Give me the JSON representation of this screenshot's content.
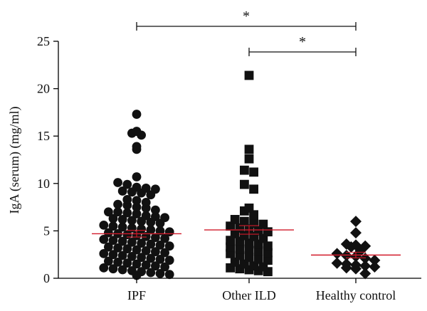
{
  "chart_data": {
    "type": "scatter",
    "title": "",
    "xlabel": "",
    "ylabel": "IgA (serum) (mg/ml)",
    "ylim": [
      0,
      25
    ],
    "yticks": [
      0,
      5,
      10,
      15,
      20,
      25
    ],
    "categories": [
      "IPF",
      "Other ILD",
      "Healthy control"
    ],
    "colors": {
      "points": "#111111",
      "mean": "#d11a2a"
    },
    "series": [
      {
        "category": "IPF",
        "marker": "circle",
        "mean": 4.7,
        "sem": 0.35,
        "values": [
          17.3,
          15.5,
          15.3,
          15.1,
          13.9,
          13.6,
          10.7,
          10.1,
          9.9,
          9.6,
          9.5,
          9.4,
          9.2,
          9.1,
          9.0,
          8.8,
          8.3,
          8.2,
          8.0,
          7.8,
          7.7,
          7.5,
          7.4,
          7.2,
          7.0,
          7.0,
          6.9,
          6.8,
          6.6,
          6.5,
          6.4,
          6.3,
          6.2,
          6.1,
          6.0,
          5.9,
          5.8,
          5.6,
          5.5,
          5.4,
          5.3,
          5.2,
          5.1,
          5.0,
          4.9,
          4.8,
          4.7,
          4.6,
          4.5,
          4.4,
          4.3,
          4.2,
          4.1,
          4.0,
          3.9,
          3.8,
          3.7,
          3.6,
          3.5,
          3.4,
          3.3,
          3.2,
          3.1,
          3.0,
          2.9,
          2.8,
          2.7,
          2.6,
          2.5,
          2.4,
          2.3,
          2.2,
          2.1,
          2.0,
          1.9,
          1.8,
          1.7,
          1.6,
          1.5,
          1.4,
          1.3,
          1.2,
          1.1,
          1.0,
          0.9,
          0.8,
          0.7,
          0.6,
          0.5,
          0.4,
          0.3
        ]
      },
      {
        "category": "Other ILD",
        "marker": "square",
        "mean": 5.1,
        "sem": 0.45,
        "values": [
          21.4,
          13.6,
          12.6,
          11.4,
          11.2,
          9.9,
          9.4,
          7.4,
          7.1,
          6.7,
          6.2,
          6.0,
          5.8,
          5.7,
          5.5,
          5.3,
          5.2,
          5.0,
          4.9,
          4.7,
          4.5,
          4.4,
          4.2,
          4.0,
          3.9,
          3.7,
          3.6,
          3.4,
          3.3,
          3.1,
          3.0,
          2.9,
          2.7,
          2.6,
          2.4,
          2.2,
          2.0,
          1.9,
          1.7,
          1.5,
          1.3,
          1.2,
          1.1,
          1.0,
          0.9,
          0.8,
          0.7
        ]
      },
      {
        "category": "Healthy control",
        "marker": "diamond",
        "mean": 2.45,
        "sem": 0.3,
        "values": [
          6.0,
          4.8,
          3.6,
          3.5,
          3.4,
          3.3,
          2.9,
          2.6,
          2.4,
          2.3,
          2.1,
          1.9,
          1.6,
          1.5,
          1.4,
          1.3,
          1.2,
          1.1,
          1.0,
          0.5
        ]
      }
    ],
    "significance": [
      {
        "from": "IPF",
        "to": "Healthy control",
        "label": "*"
      },
      {
        "from": "Other ILD",
        "to": "Healthy control",
        "label": "*"
      }
    ]
  }
}
